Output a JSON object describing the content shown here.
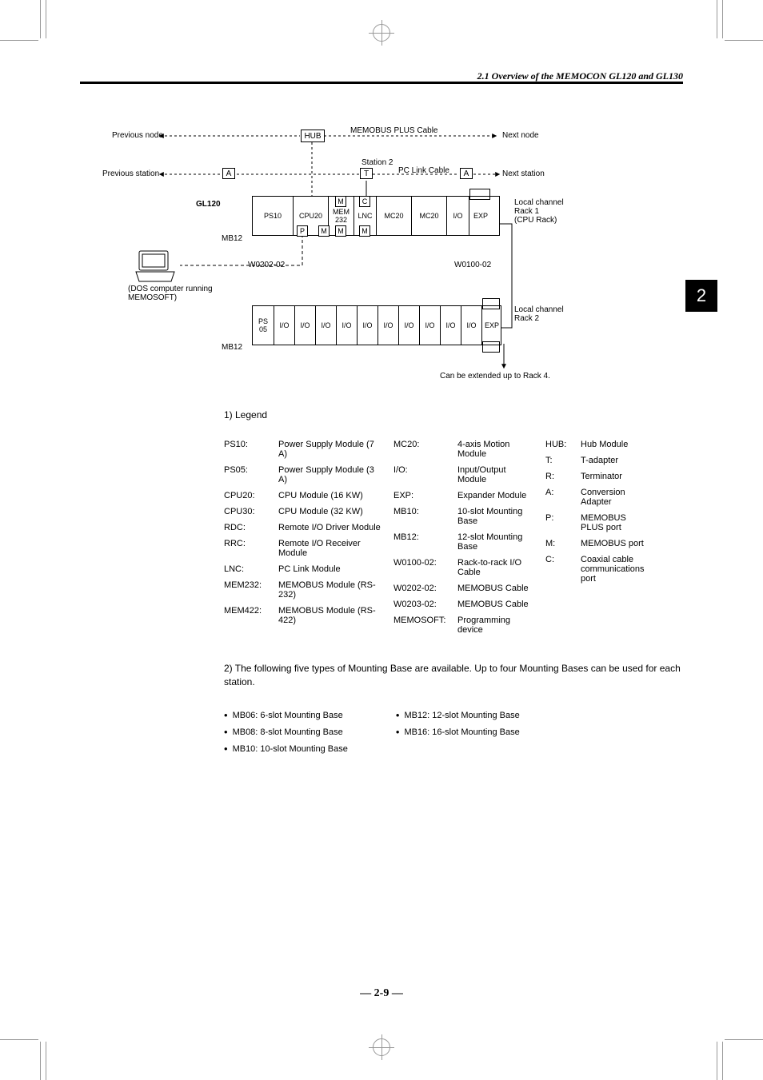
{
  "header": {
    "title": "2.1 Overview of the MEMOCON GL120 and GL130"
  },
  "side_tab": "2",
  "page_number": "— 2-9 —",
  "diagram": {
    "labels": {
      "prev_node": "Previous node",
      "next_node": "Next node",
      "prev_station": "Previous station",
      "next_station": "Next station",
      "memobus_cable": "MEMOBUS PLUS Cable",
      "pc_link_cable": "PC Link Cable",
      "station2": "Station 2",
      "gl120": "GL120",
      "mb12_1": "MB12",
      "mb12_2": "MB12",
      "local1": "Local channel\nRack 1\n(CPU Rack)",
      "local2": "Local channel\nRack 2",
      "w0202": "W0202-02",
      "w0100": "W0100-02",
      "extend": "Can be extended up to Rack 4.",
      "dos": "(DOS computer running\nMEMOSOFT)"
    },
    "boxes": {
      "hub": "HUB",
      "A1": "A",
      "A2": "A",
      "T": "T",
      "M1": "M",
      "C1": "C",
      "P": "P",
      "M2": "M",
      "M3": "M",
      "M4": "M"
    },
    "rack1": {
      "slots": [
        "PS10",
        "CPU20",
        "MEM\n232",
        "LNC",
        "MC20",
        "MC20",
        "I/O",
        "EXP"
      ]
    },
    "rack2": {
      "slots": [
        "PS\n05",
        "I/O",
        "I/O",
        "I/O",
        "I/O",
        "I/O",
        "I/O",
        "I/O",
        "I/O",
        "I/O",
        "I/O",
        "EXP"
      ]
    }
  },
  "legend": {
    "title": "1)  Legend",
    "col1": [
      {
        "k": "PS10:",
        "d": "Power Supply Module (7 A)"
      },
      {
        "k": "PS05:",
        "d": "Power Supply Module (3 A)"
      },
      {
        "k": "CPU20:",
        "d": "CPU Module (16 KW)"
      },
      {
        "k": "CPU30:",
        "d": "CPU Module (32 KW)"
      },
      {
        "k": "RDC:",
        "d": "Remote I/O Driver Module"
      },
      {
        "k": "RRC:",
        "d": "Remote I/O Receiver Module"
      },
      {
        "k": "LNC:",
        "d": "PC Link Module"
      },
      {
        "k": "MEM232:",
        "d": "MEMOBUS Module (RS-232)"
      },
      {
        "k": "MEM422:",
        "d": "MEMOBUS Module (RS-422)"
      }
    ],
    "col2": [
      {
        "k": "MC20:",
        "d": "4-axis Motion Module"
      },
      {
        "k": "I/O:",
        "d": "Input/Output Module"
      },
      {
        "k": "EXP:",
        "d": "Expander Module"
      },
      {
        "k": "MB10:",
        "d": "10-slot Mounting Base"
      },
      {
        "k": "MB12:",
        "d": "12-slot Mounting Base"
      },
      {
        "k": "W0100-02:",
        "d": "Rack-to-rack I/O Cable"
      },
      {
        "k": "W0202-02:",
        "d": "MEMOBUS Cable"
      },
      {
        "k": "W0203-02:",
        "d": "MEMOBUS Cable"
      },
      {
        "k": "MEMOSOFT:",
        "d": "Programming device"
      }
    ],
    "col3": [
      {
        "k": "HUB:",
        "d": "Hub Module"
      },
      {
        "k": "T:",
        "d": "T-adapter"
      },
      {
        "k": "R:",
        "d": "Terminator"
      },
      {
        "k": "A:",
        "d": "Conversion Adapter"
      },
      {
        "k": "P:",
        "d": "MEMOBUS PLUS port"
      },
      {
        "k": "M:",
        "d": "MEMOBUS port"
      },
      {
        "k": "C:",
        "d": "Coaxial cable communica­tions port"
      }
    ]
  },
  "note2": "2)  The following five types of Mounting Base are available. Up to four Mounting Bases can be used for each station.",
  "bases": {
    "left": [
      "MB06: 6-slot Mounting Base",
      "MB08: 8-slot Mounting Base",
      "MB10: 10-slot Mounting Base"
    ],
    "right": [
      "MB12: 12-slot Mounting Base",
      "MB16: 16-slot Mounting Base"
    ]
  }
}
